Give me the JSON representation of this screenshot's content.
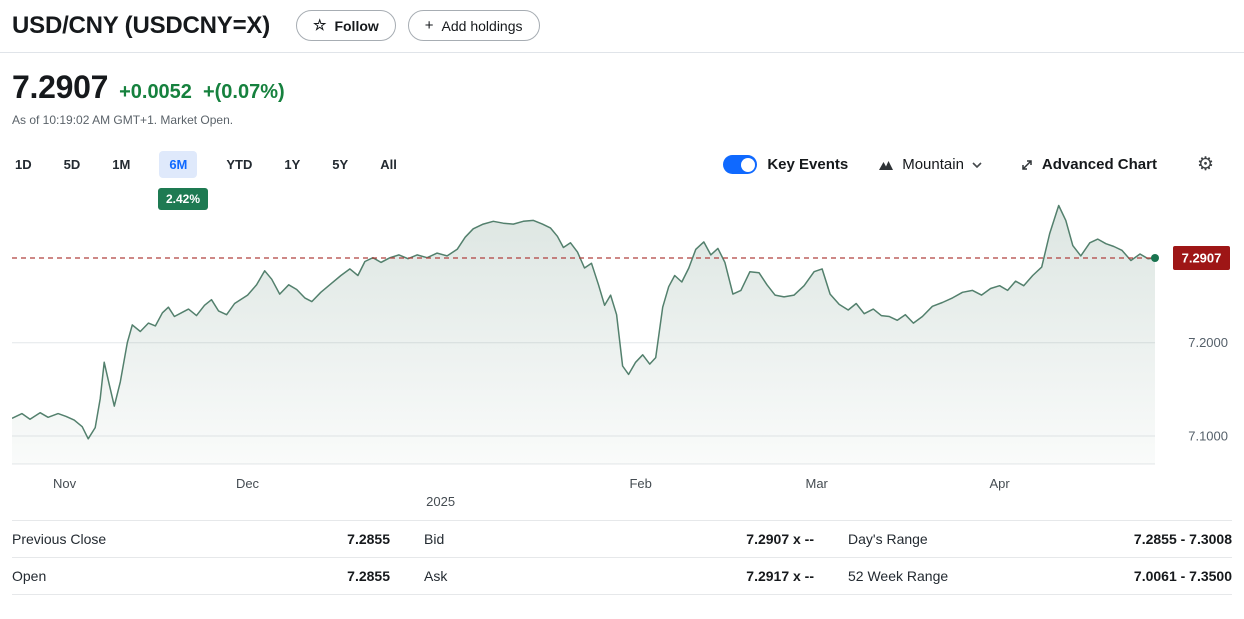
{
  "theme": {
    "accent": "#0f69ff",
    "up": "#16813e",
    "range_badge_green": "#1e7a52"
  },
  "header": {
    "title": "USD/CNY (USDCNY=X)",
    "follow_label": "Follow",
    "add_holdings_label": "Add holdings"
  },
  "quote": {
    "price": "7.2907",
    "change": "+0.0052",
    "change_pct": "+(0.07%)",
    "as_of": "As of 10:19:02 AM GMT+1. Market Open."
  },
  "ranges": {
    "items": [
      "1D",
      "5D",
      "1M",
      "6M",
      "YTD",
      "1Y",
      "5Y",
      "All"
    ],
    "active": "6M",
    "active_return": "2.42%"
  },
  "controls": {
    "key_events_label": "Key Events",
    "key_events_on": true,
    "chart_type_label": "Mountain",
    "advanced_chart_label": "Advanced Chart"
  },
  "chart_data": {
    "type": "area",
    "title": "USD/CNY 6 month price chart",
    "range": "6M",
    "ylim": [
      7.07,
      7.355
    ],
    "yticks": [
      {
        "value": 7.2,
        "label": "7.2000"
      },
      {
        "value": 7.1,
        "label": "7.1000"
      }
    ],
    "ref_line": {
      "value": 7.2907,
      "label": "7.2907",
      "color": "#b0413e",
      "badge_color": "#9e1616",
      "badge_text_color": "#ffffff"
    },
    "line_color": "#53806d",
    "fill_top": "rgba(83,128,109,0.20)",
    "fill_bottom": "rgba(83,128,109,0.03)",
    "dot_color": "#19734f",
    "x_ticks": [
      {
        "label": "Nov",
        "pos": 0.046
      },
      {
        "label": "Dec",
        "pos": 0.206
      },
      {
        "label": "2025",
        "pos": 0.375,
        "sub": true
      },
      {
        "label": "Feb",
        "pos": 0.55
      },
      {
        "label": "Mar",
        "pos": 0.704
      },
      {
        "label": "Apr",
        "pos": 0.864
      }
    ],
    "points": [
      [
        12,
        7.119
      ],
      [
        22,
        7.124
      ],
      [
        30,
        7.118
      ],
      [
        40,
        7.125
      ],
      [
        48,
        7.12
      ],
      [
        58,
        7.124
      ],
      [
        66,
        7.121
      ],
      [
        74,
        7.117
      ],
      [
        82,
        7.11
      ],
      [
        88,
        7.097
      ],
      [
        95,
        7.109
      ],
      [
        100,
        7.14
      ],
      [
        104,
        7.179
      ],
      [
        109,
        7.155
      ],
      [
        114,
        7.132
      ],
      [
        120,
        7.158
      ],
      [
        127,
        7.2
      ],
      [
        132,
        7.219
      ],
      [
        140,
        7.212
      ],
      [
        148,
        7.221
      ],
      [
        155,
        7.218
      ],
      [
        162,
        7.232
      ],
      [
        168,
        7.238
      ],
      [
        174,
        7.228
      ],
      [
        181,
        7.232
      ],
      [
        188,
        7.236
      ],
      [
        196,
        7.229
      ],
      [
        204,
        7.24
      ],
      [
        211,
        7.246
      ],
      [
        218,
        7.234
      ],
      [
        226,
        7.23
      ],
      [
        234,
        7.242
      ],
      [
        247,
        7.251
      ],
      [
        256,
        7.262
      ],
      [
        264,
        7.277
      ],
      [
        271,
        7.268
      ],
      [
        279,
        7.252
      ],
      [
        288,
        7.262
      ],
      [
        296,
        7.257
      ],
      [
        304,
        7.248
      ],
      [
        311,
        7.244
      ],
      [
        320,
        7.254
      ],
      [
        330,
        7.263
      ],
      [
        340,
        7.272
      ],
      [
        349,
        7.279
      ],
      [
        357,
        7.272
      ],
      [
        364,
        7.287
      ],
      [
        372,
        7.291
      ],
      [
        380,
        7.286
      ],
      [
        389,
        7.291
      ],
      [
        398,
        7.294
      ],
      [
        407,
        7.29
      ],
      [
        416,
        7.294
      ],
      [
        426,
        7.291
      ],
      [
        436,
        7.296
      ],
      [
        446,
        7.293
      ],
      [
        456,
        7.3
      ],
      [
        464,
        7.313
      ],
      [
        472,
        7.322
      ],
      [
        482,
        7.327
      ],
      [
        492,
        7.33
      ],
      [
        502,
        7.328
      ],
      [
        512,
        7.327
      ],
      [
        522,
        7.33
      ],
      [
        532,
        7.331
      ],
      [
        541,
        7.327
      ],
      [
        549,
        7.323
      ],
      [
        556,
        7.314
      ],
      [
        562,
        7.302
      ],
      [
        569,
        7.307
      ],
      [
        576,
        7.297
      ],
      [
        583,
        7.28
      ],
      [
        590,
        7.285
      ],
      [
        597,
        7.262
      ],
      [
        603,
        7.24
      ],
      [
        609,
        7.251
      ],
      [
        615,
        7.23
      ],
      [
        621,
        7.175
      ],
      [
        627,
        7.166
      ],
      [
        634,
        7.179
      ],
      [
        641,
        7.187
      ],
      [
        648,
        7.177
      ],
      [
        654,
        7.184
      ],
      [
        661,
        7.238
      ],
      [
        667,
        7.26
      ],
      [
        673,
        7.272
      ],
      [
        680,
        7.265
      ],
      [
        687,
        7.28
      ],
      [
        694,
        7.3
      ],
      [
        702,
        7.308
      ],
      [
        709,
        7.294
      ],
      [
        716,
        7.301
      ],
      [
        723,
        7.286
      ],
      [
        731,
        7.252
      ],
      [
        739,
        7.256
      ],
      [
        748,
        7.276
      ],
      [
        757,
        7.275
      ],
      [
        765,
        7.262
      ],
      [
        773,
        7.251
      ],
      [
        782,
        7.249
      ],
      [
        792,
        7.251
      ],
      [
        802,
        7.261
      ],
      [
        812,
        7.276
      ],
      [
        820,
        7.279
      ],
      [
        828,
        7.252
      ],
      [
        837,
        7.241
      ],
      [
        846,
        7.235
      ],
      [
        854,
        7.242
      ],
      [
        862,
        7.231
      ],
      [
        871,
        7.236
      ],
      [
        879,
        7.229
      ],
      [
        887,
        7.228
      ],
      [
        895,
        7.224
      ],
      [
        903,
        7.23
      ],
      [
        911,
        7.221
      ],
      [
        920,
        7.228
      ],
      [
        930,
        7.239
      ],
      [
        940,
        7.243
      ],
      [
        950,
        7.248
      ],
      [
        960,
        7.254
      ],
      [
        970,
        7.256
      ],
      [
        979,
        7.251
      ],
      [
        988,
        7.258
      ],
      [
        997,
        7.261
      ],
      [
        1005,
        7.256
      ],
      [
        1013,
        7.266
      ],
      [
        1021,
        7.261
      ],
      [
        1030,
        7.272
      ],
      [
        1039,
        7.281
      ],
      [
        1047,
        7.317
      ],
      [
        1056,
        7.347
      ],
      [
        1063,
        7.331
      ],
      [
        1070,
        7.304
      ],
      [
        1078,
        7.293
      ],
      [
        1087,
        7.307
      ],
      [
        1095,
        7.311
      ],
      [
        1103,
        7.306
      ],
      [
        1111,
        7.303
      ],
      [
        1119,
        7.299
      ],
      [
        1128,
        7.288
      ],
      [
        1137,
        7.295
      ],
      [
        1145,
        7.29
      ],
      [
        1152,
        7.2907
      ]
    ]
  },
  "stats": {
    "rows": [
      [
        {
          "label": "Previous Close",
          "value": "7.2855"
        },
        {
          "label": "Bid",
          "value": "7.2907 x --"
        },
        {
          "label": "Day's Range",
          "value": "7.2855 - 7.3008"
        }
      ],
      [
        {
          "label": "Open",
          "value": "7.2855"
        },
        {
          "label": "Ask",
          "value": "7.2917 x --"
        },
        {
          "label": "52 Week Range",
          "value": "7.0061 - 7.3500"
        }
      ]
    ]
  }
}
